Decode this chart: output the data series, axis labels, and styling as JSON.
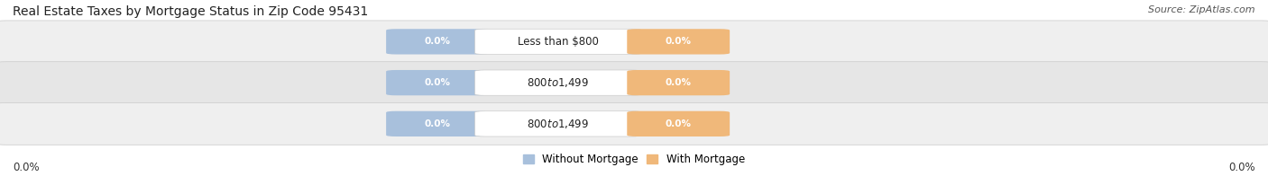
{
  "title": "Real Estate Taxes by Mortgage Status in Zip Code 95431",
  "source": "Source: ZipAtlas.com",
  "rows": [
    {
      "label": "Less than $800",
      "without_mortgage": 0.0,
      "with_mortgage": 0.0
    },
    {
      "label": "$800 to $1,499",
      "without_mortgage": 0.0,
      "with_mortgage": 0.0
    },
    {
      "label": "$800 to $1,499",
      "without_mortgage": 0.0,
      "with_mortgage": 0.0
    }
  ],
  "bar_bg_colors": [
    "#efefef",
    "#e6e6e6",
    "#efefef"
  ],
  "bar_border_color": "#d0d0d0",
  "without_mortgage_color": "#a8c0dc",
  "with_mortgage_color": "#f0b87a",
  "label_bg_color": "#ffffff",
  "label_border_color": "#cccccc",
  "axis_label_left": "0.0%",
  "axis_label_right": "0.0%",
  "legend_without": "Without Mortgage",
  "legend_with": "With Mortgage",
  "title_fontsize": 10,
  "source_fontsize": 8,
  "tick_fontsize": 8.5,
  "legend_fontsize": 8.5,
  "row_label_fontsize": 8.5,
  "value_fontsize": 7.5,
  "figsize": [
    14.06,
    1.96
  ],
  "dpi": 100
}
